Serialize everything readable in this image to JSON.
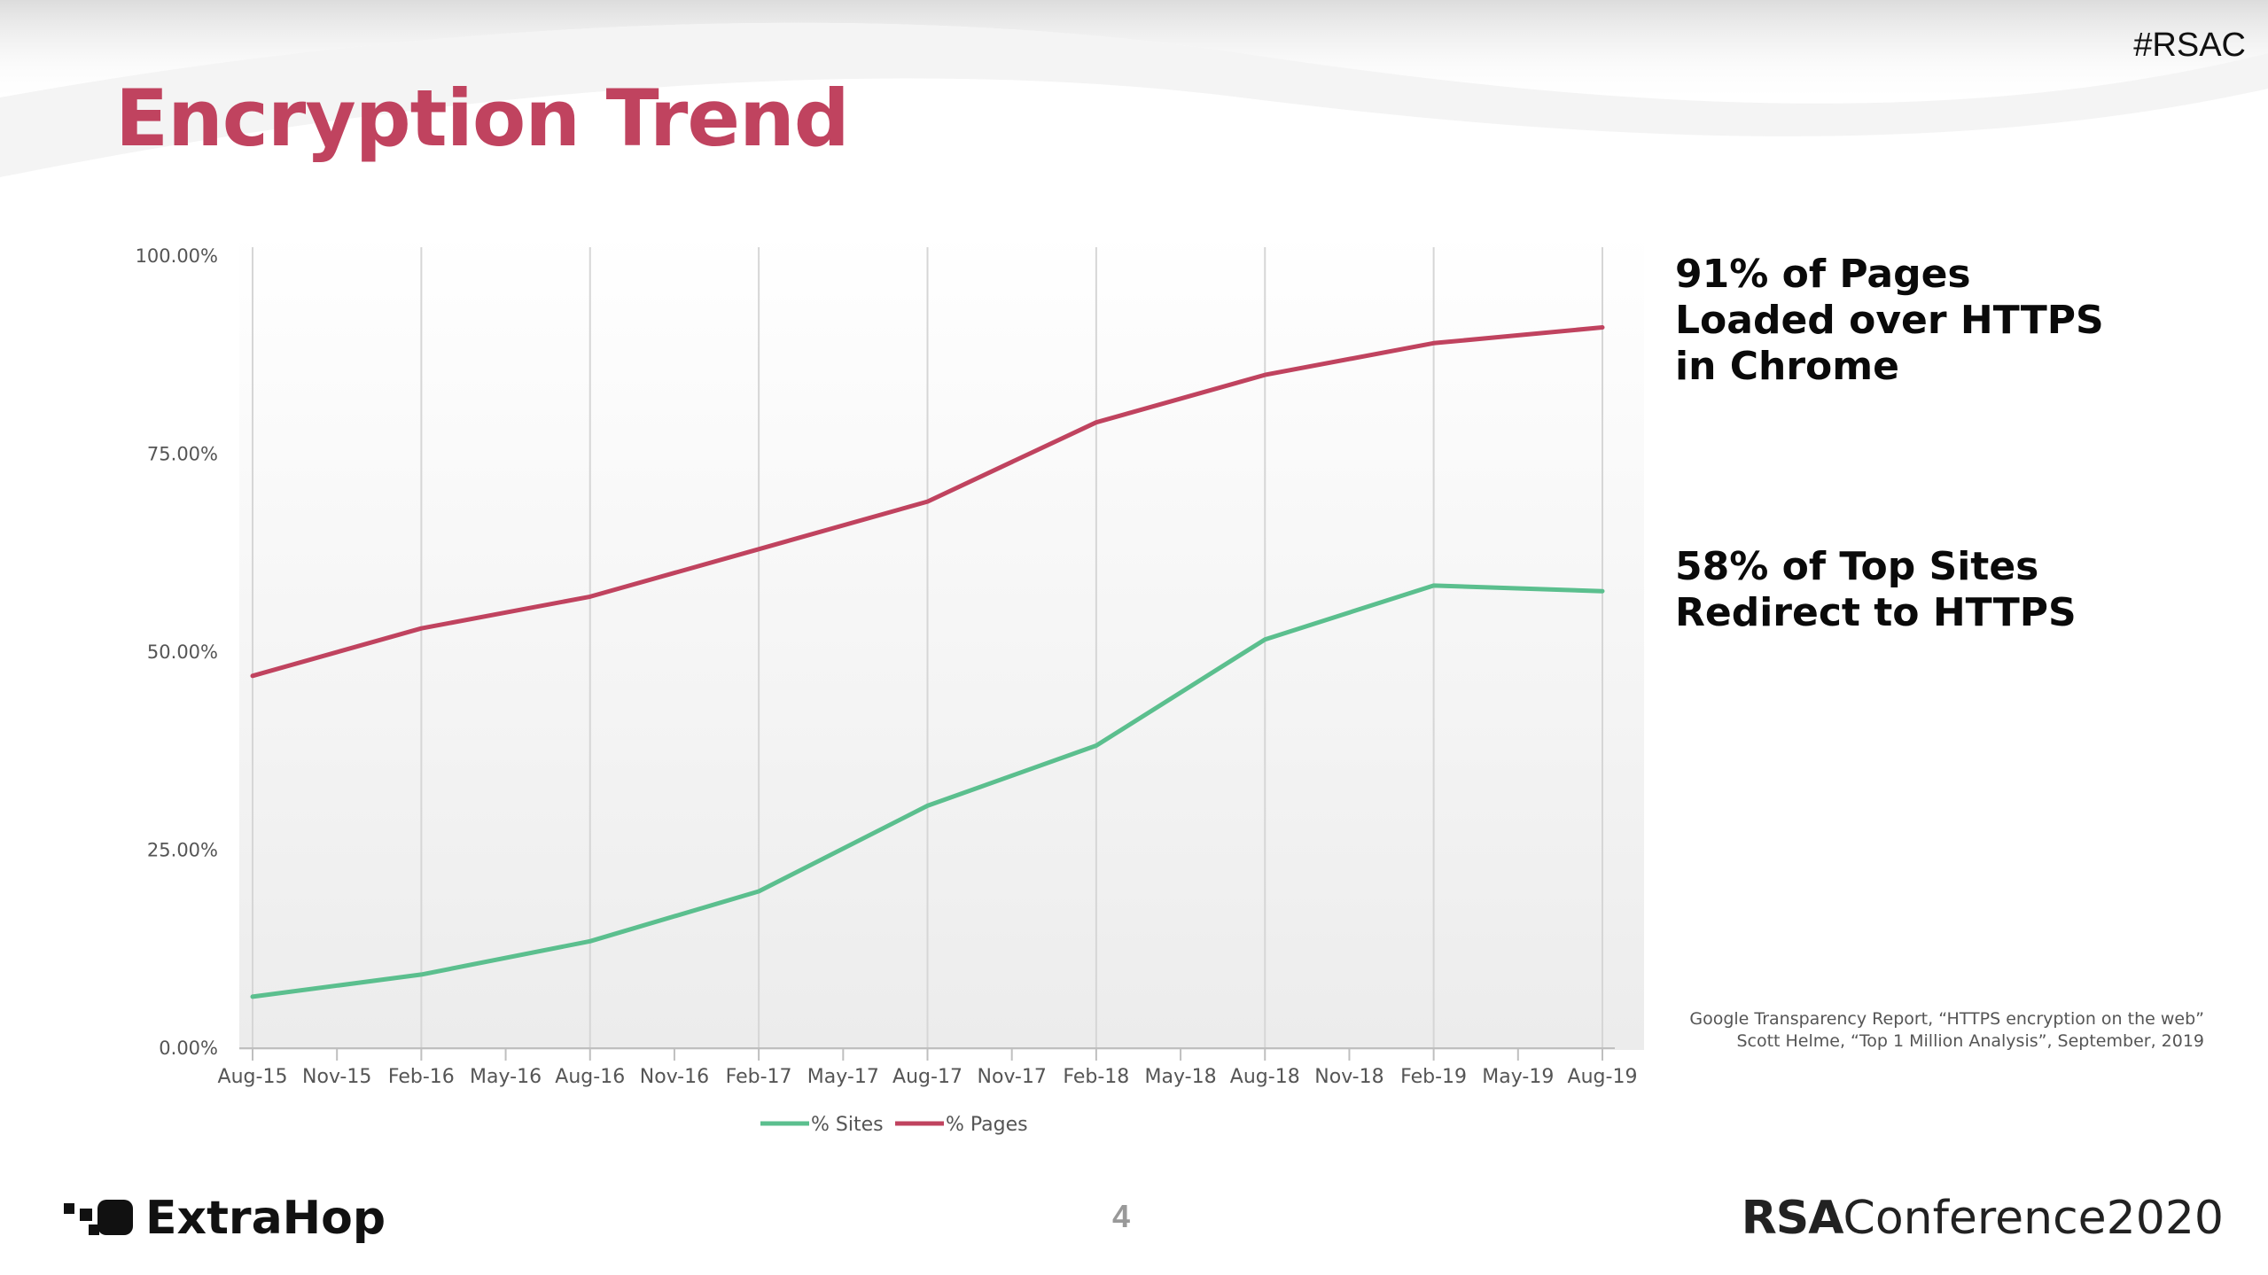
{
  "header": {
    "title": "Encryption Trend",
    "hashtag": "#RSAC"
  },
  "callouts": {
    "pages": [
      "91% of Pages",
      "Loaded over HTTPS",
      "in Chrome"
    ],
    "sites": [
      "58% of Top Sites",
      "Redirect to HTTPS"
    ]
  },
  "sources": [
    "Google Transparency Report, “HTTPS encryption on the web”",
    "Scott Helme, “Top 1 Million Analysis”, September, 2019"
  ],
  "footer": {
    "company": "ExtraHop",
    "page_number": "4",
    "conference_bold": "RSA",
    "conference_rest": "Conference2020"
  },
  "colors": {
    "title": "#c0435f",
    "sites": "#5bbf8e",
    "pages": "#c0435f"
  },
  "chart_data": {
    "type": "line",
    "categories": [
      "Aug-15",
      "Nov-15",
      "Feb-16",
      "May-16",
      "Aug-16",
      "Nov-16",
      "Feb-17",
      "May-17",
      "Aug-17",
      "Nov-17",
      "Feb-18",
      "May-18",
      "Aug-18",
      "Nov-18",
      "Feb-19",
      "May-19",
      "Aug-19"
    ],
    "series": [
      {
        "name": "% Sites",
        "color": "#5bbf8e",
        "points": [
          [
            0,
            6.5
          ],
          [
            2,
            9.3
          ],
          [
            4,
            13.5
          ],
          [
            6,
            19.8
          ],
          [
            8,
            30.6
          ],
          [
            10,
            38.2
          ],
          [
            12,
            51.6
          ],
          [
            14,
            58.4
          ],
          [
            16,
            57.7
          ]
        ]
      },
      {
        "name": "% Pages",
        "color": "#c0435f",
        "points": [
          [
            0,
            47.0
          ],
          [
            2,
            53.0
          ],
          [
            4,
            57.0
          ],
          [
            6,
            63.0
          ],
          [
            8,
            69.0
          ],
          [
            10,
            79.0
          ],
          [
            12,
            85.0
          ],
          [
            14,
            89.0
          ],
          [
            16,
            91.0
          ]
        ]
      }
    ],
    "ylim": [
      0,
      100
    ],
    "yticks": [
      0,
      25,
      50,
      75,
      100
    ],
    "ytick_labels": [
      "0.00%",
      "25.00%",
      "50.00%",
      "75.00%",
      "100.00%"
    ],
    "legend": "bottom",
    "title": "",
    "xlabel": "",
    "ylabel": ""
  }
}
